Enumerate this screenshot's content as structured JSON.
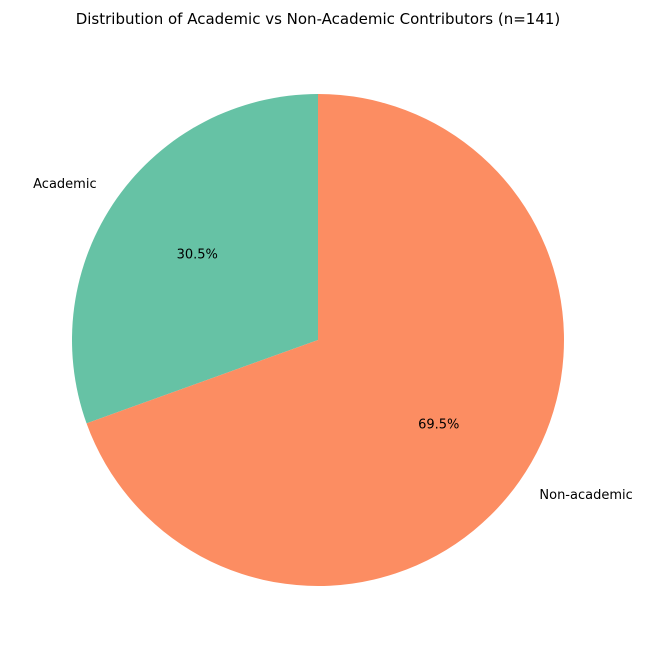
{
  "chart_data": {
    "type": "pie",
    "title": "Distribution of Academic vs Non-Academic Contributors (n=141)",
    "start_angle_deg": 90,
    "direction": "counterclockwise",
    "slices": [
      {
        "label": "Academic",
        "value": 30.5,
        "pct_label": "30.5%",
        "color": "#66c2a5"
      },
      {
        "label": "Non-academic",
        "value": 69.5,
        "pct_label": "69.5%",
        "color": "#fc8d62"
      }
    ]
  }
}
